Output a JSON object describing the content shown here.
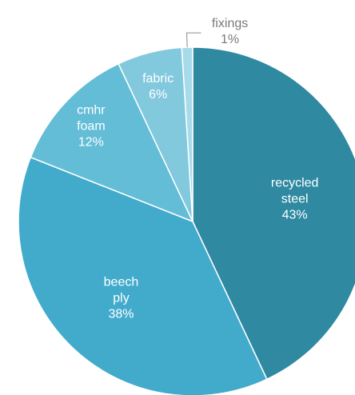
{
  "chart_data": {
    "type": "pie",
    "title": "",
    "start_angle_deg": 0,
    "direction": "clockwise",
    "slices": [
      {
        "label_lines": [
          "recycled",
          "steel"
        ],
        "value": 43,
        "value_label": "43%",
        "color": "#2e89a1",
        "text_color": "#ffffff"
      },
      {
        "label_lines": [
          "beech",
          "ply"
        ],
        "value": 38,
        "value_label": "38%",
        "color": "#42abcc",
        "text_color": "#ffffff"
      },
      {
        "label_lines": [
          "cmhr",
          "foam"
        ],
        "value": 12,
        "value_label": "12%",
        "color": "#64bdd6",
        "text_color": "#ffffff"
      },
      {
        "label_lines": [
          "fabric"
        ],
        "value": 6,
        "value_label": "6%",
        "color": "#82c9de",
        "text_color": "#ffffff"
      },
      {
        "label_lines": [
          "fixings"
        ],
        "value": 1,
        "value_label": "1%",
        "color": "#a8dbea",
        "text_color": "#7a7a7a",
        "outside_label": true
      }
    ]
  }
}
